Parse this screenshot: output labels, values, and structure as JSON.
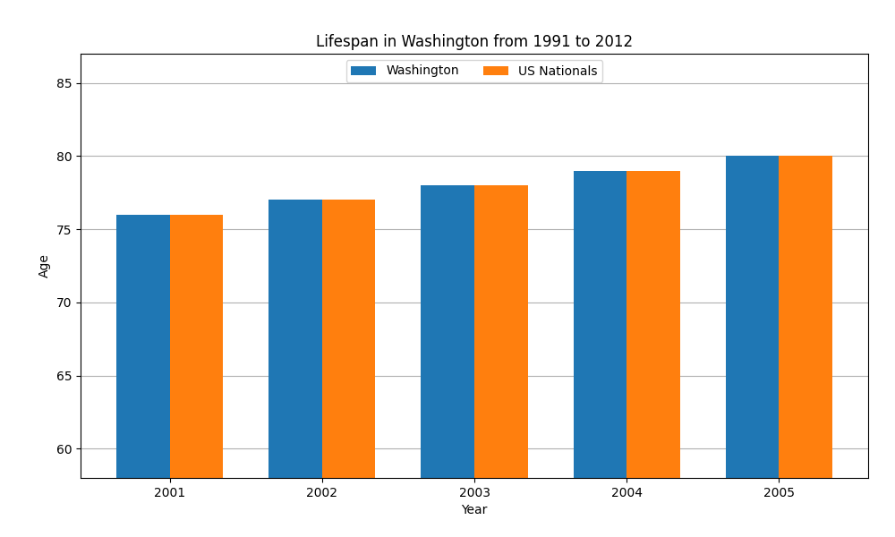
{
  "chart_data": {
    "type": "bar",
    "title": "Lifespan in Washington from 1991 to 2012",
    "x_label": "Year",
    "y_label": "Age",
    "categories": [
      "2001",
      "2002",
      "2003",
      "2004",
      "2005"
    ],
    "series": [
      {
        "name": "Washington",
        "values": [
          76,
          77,
          78,
          79,
          80
        ]
      },
      {
        "name": "US Nationals",
        "values": [
          76,
          77,
          78,
          79,
          80
        ]
      }
    ],
    "ylim": [
      58,
      87
    ],
    "yticks": [
      60,
      65,
      70,
      75,
      80,
      85
    ],
    "grid": true,
    "legend": "upper center"
  }
}
